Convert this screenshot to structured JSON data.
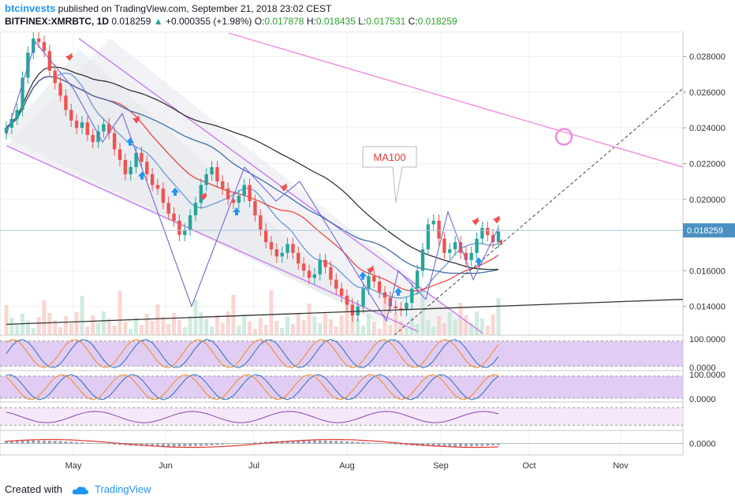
{
  "header": {
    "author": "btcinvests",
    "published_text": " published on TradingView.com, September 21, 2018 23:02 CEST",
    "symbol": "BITFINEX:XMRBTC, 1D",
    "last_price": "0.018259",
    "change_arrow": "▲",
    "change": "+0.000355 (+1.98%)",
    "o_label": "O:",
    "o_value": "0.017878",
    "h_label": "H:",
    "h_value": "0.018435",
    "l_label": "L:",
    "l_value": "0.017531",
    "c_label": "C:",
    "c_value": "0.018259"
  },
  "footer": {
    "created_with": "Created with",
    "brand": "TradingView"
  },
  "colors": {
    "up_candle": "#26a69a",
    "down_candle": "#ef5350",
    "channel": "#c77cee",
    "ma_red": "#e53935",
    "ma_blue": "#3f6ea5",
    "ma_black": "#333333",
    "pink_line": "#f08ce0",
    "price_label": "#4a90c2",
    "osc_band": "#d9bff0"
  },
  "chart_data": {
    "type": "candlestick",
    "symbol": "BITFINEX:XMRBTC",
    "interval": "1D",
    "x_labels": [
      "May",
      "Jun",
      "Jul",
      "Aug",
      "Sep",
      "Oct",
      "Nov"
    ],
    "y_ticks": [
      "0.028000",
      "0.026000",
      "0.024000",
      "0.022000",
      "0.020000",
      "0.016000",
      "0.014000"
    ],
    "ylim": [
      0.0124,
      0.0293
    ],
    "last_price_label": "0.018259",
    "annotation": "MA100",
    "close_series_approx": [
      0.024,
      0.0245,
      0.025,
      0.0268,
      0.0282,
      0.029,
      0.0288,
      0.0283,
      0.0272,
      0.0265,
      0.0258,
      0.025,
      0.0244,
      0.024,
      0.0243,
      0.0236,
      0.0232,
      0.0238,
      0.0242,
      0.0237,
      0.0228,
      0.0222,
      0.0214,
      0.0218,
      0.0226,
      0.0221,
      0.0214,
      0.0208,
      0.0206,
      0.0198,
      0.0192,
      0.0188,
      0.018,
      0.0183,
      0.0191,
      0.0198,
      0.0208,
      0.0214,
      0.0218,
      0.021,
      0.0206,
      0.02,
      0.0198,
      0.0202,
      0.0208,
      0.0199,
      0.0191,
      0.0183,
      0.0176,
      0.0172,
      0.0168,
      0.017,
      0.0175,
      0.017,
      0.0164,
      0.016,
      0.0156,
      0.0158,
      0.0166,
      0.0162,
      0.0155,
      0.015,
      0.0146,
      0.0141,
      0.0135,
      0.014,
      0.015,
      0.0157,
      0.0154,
      0.0148,
      0.0145,
      0.014,
      0.0139,
      0.0138,
      0.0142,
      0.015,
      0.016,
      0.0172,
      0.0186,
      0.0188,
      0.0178,
      0.017,
      0.0172,
      0.0176,
      0.017,
      0.0166,
      0.017,
      0.0178,
      0.0184,
      0.018,
      0.0176,
      0.0182
    ],
    "panels": [
      {
        "name": "stoch_rsi_1",
        "ticks": [
          "100.0000",
          "0.0000"
        ]
      },
      {
        "name": "stoch_rsi_2",
        "ticks": [
          "100.0000",
          "0.0000"
        ]
      },
      {
        "name": "rsi",
        "ticks": []
      },
      {
        "name": "macd",
        "ticks": [
          "0.0000"
        ]
      }
    ]
  }
}
